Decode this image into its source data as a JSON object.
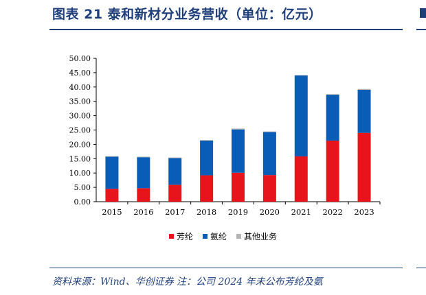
{
  "header": {
    "title": "图表 21   泰和新材分业务营收（单位：亿元）"
  },
  "footer": {
    "source": "资料来源：Wind、华创证券   注：公司 2024 年未公布芳纶及氨"
  },
  "chart_data": {
    "type": "bar",
    "stacked": true,
    "categories": [
      "2015",
      "2016",
      "2017",
      "2018",
      "2019",
      "2020",
      "2021",
      "2022",
      "2023"
    ],
    "series": [
      {
        "name": "芳纶",
        "color": "#e8141c",
        "values": [
          4.5,
          4.7,
          5.9,
          9.2,
          10.1,
          9.3,
          15.8,
          21.3,
          24.0
        ]
      },
      {
        "name": "氨纶",
        "color": "#0a5db6",
        "values": [
          11.2,
          10.8,
          9.3,
          12.1,
          15.1,
          15.0,
          28.2,
          16.0,
          15.0
        ]
      },
      {
        "name": "其他业务",
        "color": "#b4b4b4",
        "values": [
          0.2,
          0.2,
          0.2,
          0.2,
          0.3,
          0.2,
          0.2,
          0.2,
          0.3
        ]
      }
    ],
    "yticks": [
      "0.00",
      "5.00",
      "10.00",
      "15.00",
      "20.00",
      "25.00",
      "30.00",
      "35.00",
      "40.00",
      "45.00",
      "50.00"
    ],
    "ylim": [
      0,
      50
    ],
    "grid": false,
    "legend_position": "bottom"
  }
}
